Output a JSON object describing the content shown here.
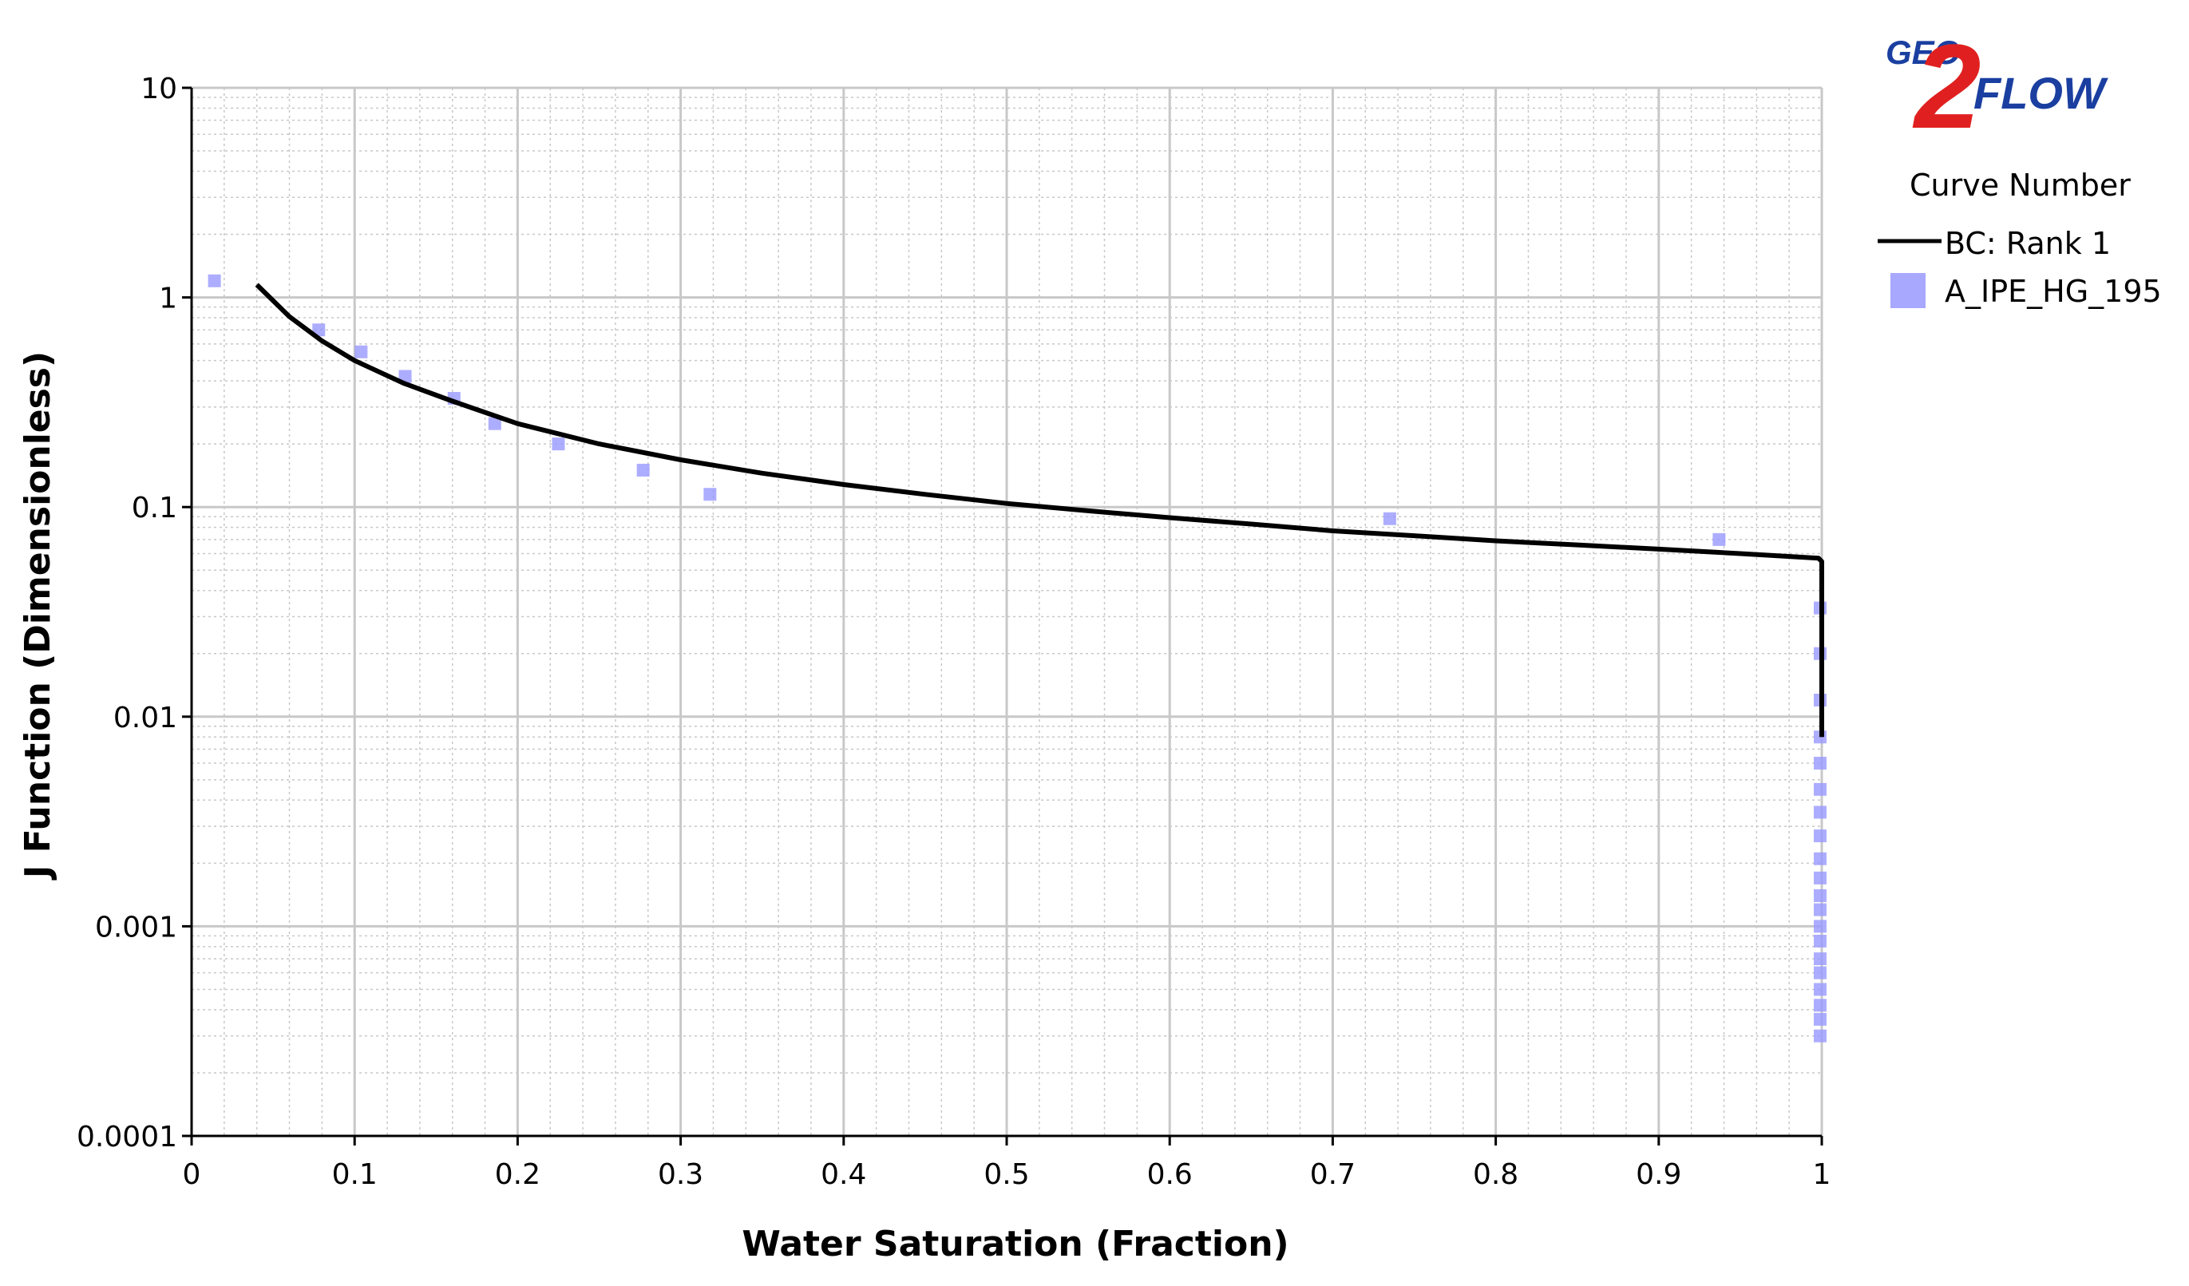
{
  "chart_data": {
    "type": "scatter",
    "x_scale": "linear",
    "y_scale": "log",
    "xlabel": "Water Saturation (Fraction)",
    "ylabel": "J Function (Dimensionless)",
    "xlim": [
      0,
      1
    ],
    "ylim": [
      0.0001,
      10
    ],
    "x_ticks": [
      0,
      0.1,
      0.2,
      0.3,
      0.4,
      0.5,
      0.6,
      0.7,
      0.8,
      0.9,
      1
    ],
    "x_tick_labels": [
      "0",
      "0.1",
      "0.2",
      "0.3",
      "0.4",
      "0.5",
      "0.6",
      "0.7",
      "0.8",
      "0.9",
      "1"
    ],
    "y_ticks": [
      0.0001,
      0.001,
      0.01,
      0.1,
      1,
      10
    ],
    "y_tick_labels": [
      "0.0001",
      "0.001",
      "0.01",
      "0.1",
      "1",
      "10"
    ],
    "grid": true,
    "legend_title": "Curve Number",
    "legend_position": "right",
    "series": [
      {
        "name": "BC: Rank 1",
        "kind": "line",
        "color": "#000000",
        "x": [
          0.04,
          0.06,
          0.08,
          0.1,
          0.13,
          0.16,
          0.2,
          0.25,
          0.3,
          0.35,
          0.4,
          0.45,
          0.5,
          0.55,
          0.6,
          0.65,
          0.7,
          0.75,
          0.8,
          0.85,
          0.9,
          0.95,
          0.998,
          1.0,
          1.0
        ],
        "y": [
          1.15,
          0.81,
          0.62,
          0.5,
          0.39,
          0.32,
          0.25,
          0.2,
          0.168,
          0.145,
          0.128,
          0.115,
          0.104,
          0.096,
          0.089,
          0.083,
          0.077,
          0.073,
          0.069,
          0.066,
          0.063,
          0.06,
          0.057,
          0.055,
          0.008
        ]
      },
      {
        "name": "A_IPE_HG_195",
        "kind": "points",
        "color": "#9999ff",
        "x": [
          0.014,
          0.078,
          0.104,
          0.131,
          0.161,
          0.186,
          0.225,
          0.277,
          0.318,
          0.735,
          0.937,
          0.999,
          0.999,
          0.999,
          0.999,
          0.999,
          0.999,
          0.999,
          0.999,
          0.999,
          0.999,
          0.999,
          0.999,
          0.999,
          0.999,
          0.999,
          0.999,
          0.999,
          0.999,
          0.999,
          0.999
        ],
        "y": [
          1.2,
          0.7,
          0.55,
          0.42,
          0.33,
          0.25,
          0.2,
          0.15,
          0.115,
          0.088,
          0.07,
          0.033,
          0.02,
          0.012,
          0.008,
          0.006,
          0.0045,
          0.0035,
          0.0027,
          0.0021,
          0.0017,
          0.0014,
          0.0012,
          0.001,
          0.00085,
          0.0007,
          0.0006,
          0.0005,
          0.00042,
          0.00036,
          0.0003
        ]
      }
    ]
  },
  "logo": {
    "text_top": "GEO",
    "text_digit": "2",
    "text_bottom": "FLOW"
  },
  "colors": {
    "grid_major": "#c8c8c8",
    "grid_minor": "#c8c8c8",
    "axis": "#000000",
    "logo_red": "#e02020",
    "logo_blue": "#1a3fa0"
  }
}
